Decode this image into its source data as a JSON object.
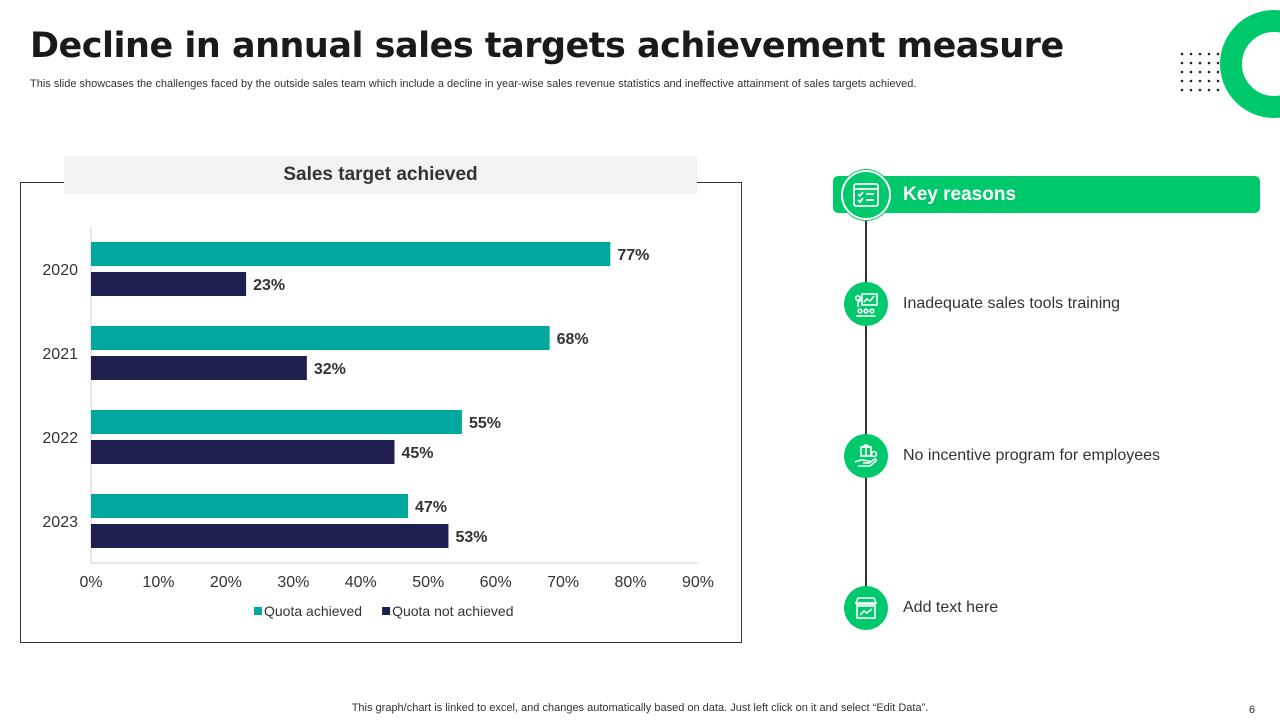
{
  "slide": {
    "title": "Decline in annual sales targets achievement measure",
    "subtitle": "This slide showcases the challenges faced by the outside sales team which include a decline in year-wise sales revenue statistics and ineffective attainment of sales targets achieved.",
    "footer": "This graph/chart is linked to excel,  and changes automatically based on data. Just left click on it and select “Edit Data”.",
    "page_number": "6"
  },
  "reasons": {
    "title": "Key reasons",
    "items": [
      {
        "label": "Inadequate sales tools training",
        "icon": "presentation-training-icon"
      },
      {
        "label": "No incentive program for employees",
        "icon": "hand-gift-icon"
      },
      {
        "label": "Add text here",
        "icon": "storefront-icon"
      }
    ]
  },
  "colors": {
    "accent": "#00c96b",
    "achieved": "#00a79d",
    "not_achieved": "#1f1f4f"
  },
  "chart_data": {
    "type": "bar",
    "orientation": "horizontal",
    "title": "Sales target achieved",
    "categories": [
      "2020",
      "2021",
      "2022",
      "2023"
    ],
    "series": [
      {
        "name": "Quota achieved",
        "values": [
          77,
          68,
          55,
          47
        ]
      },
      {
        "name": "Quota not achieved",
        "values": [
          23,
          32,
          45,
          53
        ]
      }
    ],
    "xlim": [
      0,
      90
    ],
    "xticks": [
      0,
      10,
      20,
      30,
      40,
      50,
      60,
      70,
      80,
      90
    ],
    "tick_suffix": "%",
    "label_suffix": "%",
    "legend_position": "bottom"
  }
}
